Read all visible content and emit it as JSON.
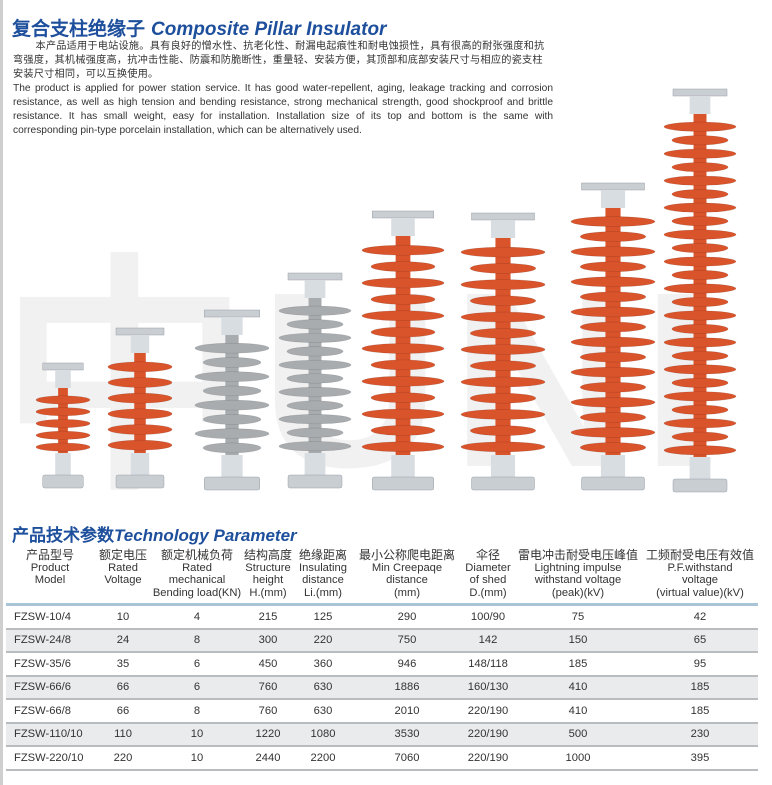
{
  "header": {
    "title_cn": "复合支柱绝缘子",
    "title_en": "Composite Pillar Insulator",
    "description_cn": "本产品适用于电站设施。具有良好的憎水性、抗老化性、耐漏电起痕性和耐电蚀损性，具有很高的耐张强度和抗弯强度，其机械强度高，抗冲击性能、防震和防脆断性，重量轻、安装方便，其顶部和底部安装尺寸与相应的瓷支柱安装尺寸相同，可以互换使用。",
    "description_en": "The product is applied for power station service. It has good water-repellent, aging, leakage tracking and corrosion resistance, as well as high tension and bending resistance, strong mechanical strength, good shockproof and brittle resistance. It has small weight, easy for installation. Installation size of its top and bottom is the same with corresponding pin-type porcelain installation, which can be alternatively used."
  },
  "image": {
    "insulator_colors": {
      "silicone_red": "#d9532b",
      "silicone_gray": "#a8acaf",
      "metal": "#c9ced3"
    },
    "watermark": "中UNI"
  },
  "section": {
    "title_cn": "产品技术参数",
    "title_en": "Technology Parameter"
  },
  "table": {
    "columns": [
      {
        "cn": "产品型号",
        "en": "Product\nModel"
      },
      {
        "cn": "额定电压",
        "en": "Rated\nVoltage"
      },
      {
        "cn": "额定机械负荷",
        "en": "Rated\nmechanical\nBending load(KN)"
      },
      {
        "cn": "结构高度",
        "en": "Structure\nheight\nH.(mm)"
      },
      {
        "cn": "绝缘距离",
        "en": "Insulating\ndistance\nLi.(mm)"
      },
      {
        "cn": "最小公称爬电距离",
        "en": "Min Creepaqe\ndistance\n(mm)"
      },
      {
        "cn": "伞径",
        "en": "Diameter\nof shed\nD.(mm)"
      },
      {
        "cn": "雷电冲击耐受电压峰值",
        "en": "Lightning impulse\nwithstand voltage\n(peak)(kV)"
      },
      {
        "cn": "工频耐受电压有效值",
        "en": "P.F.withstand\nvoltage\n(virtual value)(kV)"
      }
    ],
    "rows": [
      [
        "FZSW-10/4",
        "10",
        "4",
        "215",
        "125",
        "290",
        "100/90",
        "75",
        "42"
      ],
      [
        "FZSW-24/8",
        "24",
        "8",
        "300",
        "220",
        "750",
        "142",
        "150",
        "65"
      ],
      [
        "FZSW-35/6",
        "35",
        "6",
        "450",
        "360",
        "946",
        "148/118",
        "185",
        "95"
      ],
      [
        "FZSW-66/6",
        "66",
        "6",
        "760",
        "630",
        "1886",
        "160/130",
        "410",
        "185"
      ],
      [
        "FZSW-66/8",
        "66",
        "8",
        "760",
        "630",
        "2010",
        "220/190",
        "410",
        "185"
      ],
      [
        "FZSW-110/10",
        "110",
        "10",
        "1220",
        "1080",
        "3530",
        "220/190",
        "500",
        "230"
      ],
      [
        "FZSW-220/10",
        "220",
        "10",
        "2440",
        "2200",
        "7060",
        "220/190",
        "1000",
        "395"
      ]
    ]
  }
}
